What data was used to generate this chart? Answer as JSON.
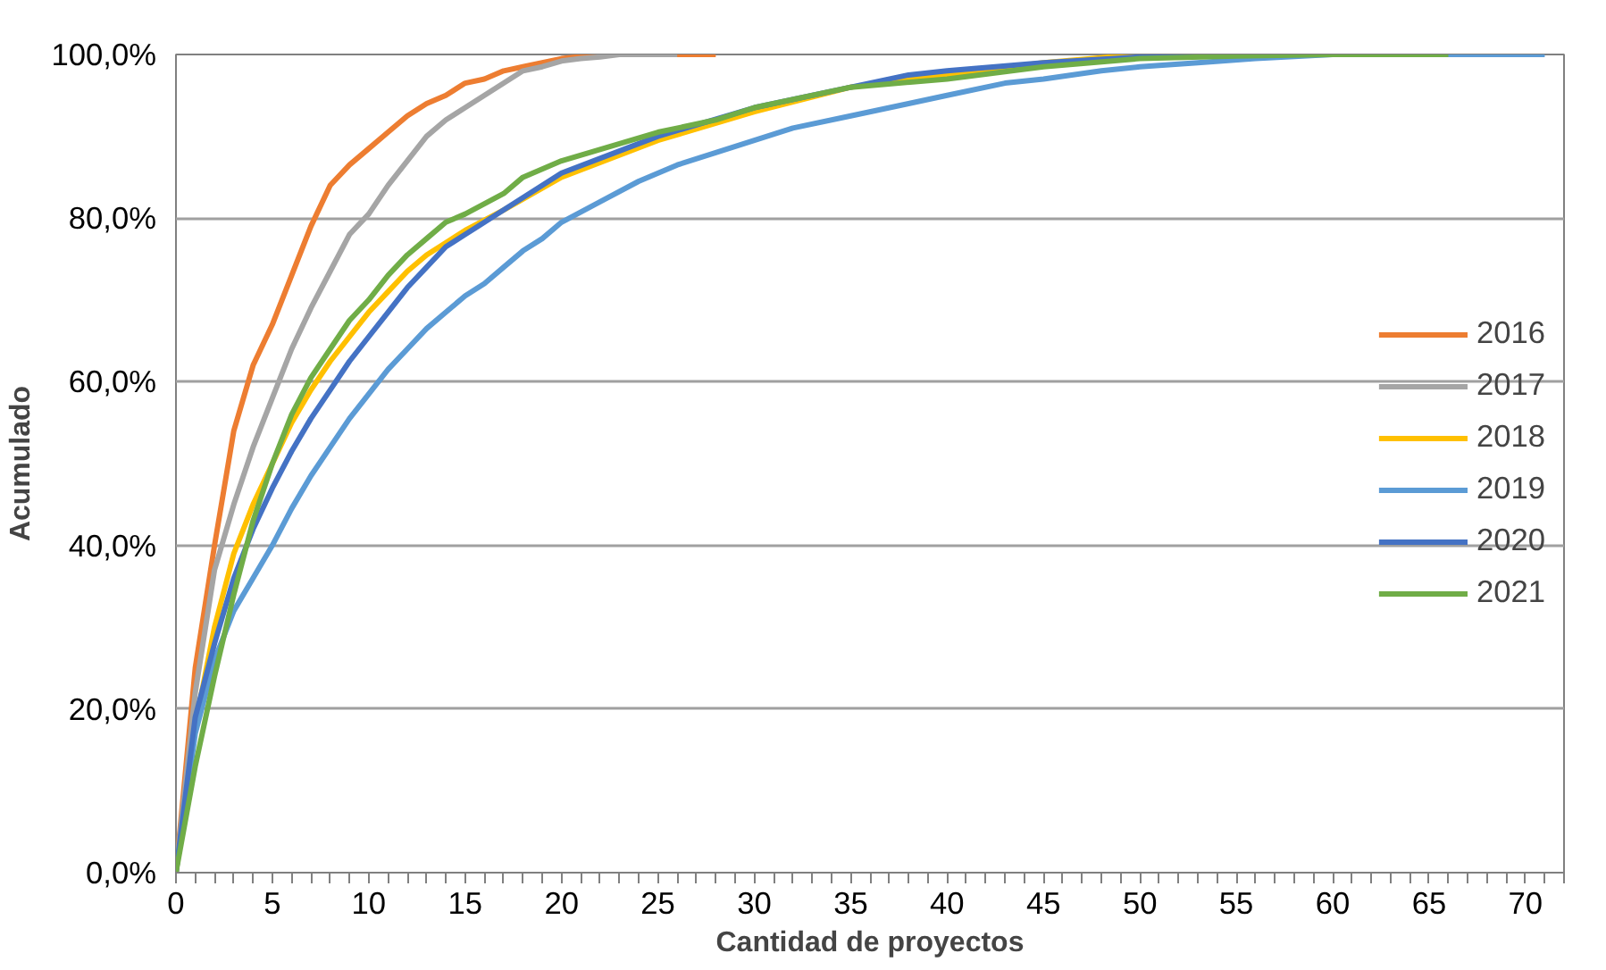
{
  "chart_data": {
    "type": "line",
    "xlabel": "Cantidad de proyectos",
    "ylabel": "Acumulado",
    "xlim": [
      0,
      72
    ],
    "xticks": [
      0,
      5,
      10,
      15,
      20,
      25,
      30,
      35,
      40,
      45,
      50,
      55,
      60,
      65,
      70
    ],
    "ylim": [
      0,
      100
    ],
    "yticks": [
      {
        "value": 0,
        "label": "0,0%"
      },
      {
        "value": 20,
        "label": "20,0%"
      },
      {
        "value": 40,
        "label": "40,0%"
      },
      {
        "value": 60,
        "label": "60,0%"
      },
      {
        "value": 80,
        "label": "80,0%"
      },
      {
        "value": 100,
        "label": "100,0%"
      }
    ],
    "grid": "y",
    "legend": "right",
    "marker": "none",
    "line_style": "solid",
    "series": [
      {
        "name": "2016",
        "color": "#ed7d31",
        "x": [
          0,
          1,
          2,
          3,
          4,
          5,
          6,
          7,
          8,
          9,
          10,
          11,
          12,
          13,
          14,
          15,
          16,
          17,
          18,
          19,
          20,
          22,
          28
        ],
        "values": [
          0,
          25,
          40,
          54,
          62,
          67,
          73,
          79,
          84,
          86.5,
          88.5,
          90.5,
          92.5,
          94,
          95,
          96.5,
          97,
          98,
          98.5,
          99,
          99.5,
          100,
          100
        ]
      },
      {
        "name": "2017",
        "color": "#a5a5a5",
        "x": [
          0,
          1,
          2,
          3,
          4,
          5,
          6,
          7,
          8,
          9,
          10,
          11,
          12,
          13,
          14,
          15,
          16,
          17,
          18,
          19,
          20,
          21,
          22,
          23,
          26
        ],
        "values": [
          0,
          22,
          37,
          45,
          52,
          58,
          64,
          69,
          73.5,
          78,
          80.5,
          84,
          87,
          90,
          92,
          93.5,
          95,
          96.5,
          98,
          98.5,
          99.2,
          99.5,
          99.7,
          100,
          100
        ]
      },
      {
        "name": "2018",
        "color": "#ffc000",
        "x": [
          0,
          1,
          2,
          3,
          4,
          5,
          6,
          7,
          8,
          9,
          10,
          11,
          12,
          13,
          14,
          15,
          17,
          20,
          25,
          30,
          35,
          40,
          45,
          50
        ],
        "values": [
          0,
          18,
          30,
          39,
          45,
          50,
          55,
          59,
          62.5,
          65.5,
          68.5,
          71,
          73.5,
          75.5,
          77,
          78.5,
          81,
          85,
          89.5,
          93,
          96,
          97.5,
          99,
          100
        ]
      },
      {
        "name": "2019",
        "color": "#5b9bd5",
        "x": [
          0,
          1,
          2,
          3,
          4,
          5,
          6,
          7,
          8,
          9,
          10,
          11,
          12,
          13,
          14,
          15,
          16,
          17,
          18,
          19,
          20,
          22,
          24,
          26,
          28,
          30,
          32,
          35,
          38,
          40,
          43,
          45,
          48,
          50,
          53,
          56,
          60,
          71
        ],
        "values": [
          0,
          17,
          26,
          32,
          36,
          40,
          44.5,
          48.5,
          52,
          55.5,
          58.5,
          61.5,
          64,
          66.5,
          68.5,
          70.5,
          72,
          74,
          76,
          77.5,
          79.5,
          82,
          84.5,
          86.5,
          88,
          89.5,
          91,
          92.5,
          94,
          95,
          96.5,
          97,
          98,
          98.5,
          99,
          99.5,
          100,
          100
        ]
      },
      {
        "name": "2020",
        "color": "#4472c4",
        "x": [
          0,
          1,
          2,
          3,
          4,
          5,
          6,
          7,
          8,
          9,
          10,
          11,
          12,
          13,
          14,
          15,
          17,
          20,
          25,
          30,
          35,
          38,
          40,
          45,
          50,
          55,
          65
        ],
        "values": [
          0,
          19,
          28,
          36,
          42,
          47,
          51.5,
          55.5,
          59,
          62.5,
          65.5,
          68.5,
          71.5,
          74,
          76.5,
          78,
          81,
          85.5,
          90,
          93.5,
          96,
          97.5,
          98,
          99,
          99.7,
          100,
          100
        ]
      },
      {
        "name": "2021",
        "color": "#70ad47",
        "x": [
          0,
          1,
          2,
          3,
          4,
          5,
          6,
          7,
          8,
          9,
          10,
          11,
          12,
          13,
          14,
          15,
          17,
          18,
          20,
          25,
          28,
          30,
          35,
          40,
          45,
          50,
          55,
          60,
          66
        ],
        "values": [
          0,
          13,
          24,
          34,
          43,
          50,
          56,
          60.5,
          64,
          67.5,
          70,
          73,
          75.5,
          77.5,
          79.5,
          80.5,
          83,
          85,
          87,
          90.5,
          92,
          93.5,
          96,
          97,
          98.5,
          99.5,
          99.8,
          100,
          100
        ]
      }
    ]
  }
}
